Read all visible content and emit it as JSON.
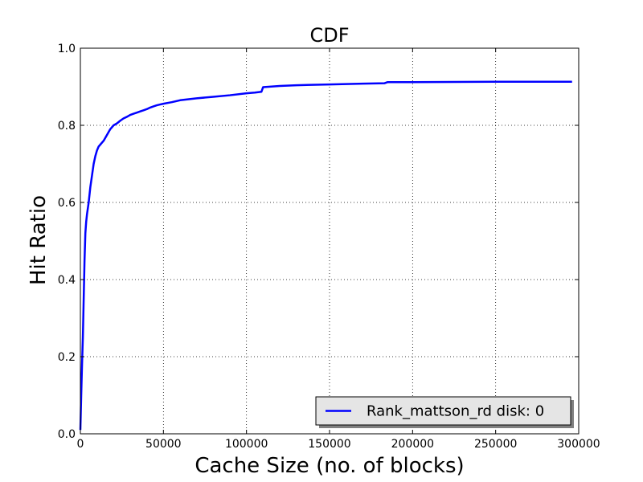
{
  "chart_data": {
    "type": "line",
    "title": "CDF",
    "xlabel": "Cache Size (no. of blocks)",
    "ylabel": "Hit Ratio",
    "xlim": [
      0,
      300000
    ],
    "ylim": [
      0,
      1.0
    ],
    "xticks": [
      0,
      50000,
      100000,
      150000,
      200000,
      250000,
      300000
    ],
    "xtick_labels": [
      "0",
      "50000",
      "100000",
      "150000",
      "200000",
      "250000",
      "300000"
    ],
    "yticks": [
      0.0,
      0.2,
      0.4,
      0.6,
      0.8,
      1.0
    ],
    "ytick_labels": [
      "0.0",
      "0.2",
      "0.4",
      "0.6",
      "0.8",
      "1.0"
    ],
    "grid": true,
    "legend_position": "bottom-right",
    "series": [
      {
        "name": "Rank_mattson_rd disk: 0",
        "color": "#0000ff",
        "x": [
          0,
          500,
          1000,
          1500,
          2000,
          2500,
          3000,
          3500,
          4000,
          5000,
          6000,
          7000,
          8000,
          9000,
          10000,
          11000,
          12000,
          13000,
          14000,
          16000,
          18000,
          20000,
          22000,
          24000,
          26000,
          28000,
          30000,
          32000,
          34000,
          36000,
          38000,
          40000,
          42000,
          44000,
          46000,
          48000,
          50000,
          55000,
          60000,
          70000,
          80000,
          90000,
          100000,
          105000,
          109000,
          110000,
          120000,
          130000,
          150000,
          170000,
          183000,
          185000,
          200000,
          250000,
          280000,
          296000
        ],
        "y": [
          0.01,
          0.1,
          0.18,
          0.25,
          0.35,
          0.45,
          0.52,
          0.55,
          0.57,
          0.6,
          0.64,
          0.67,
          0.7,
          0.72,
          0.735,
          0.745,
          0.75,
          0.755,
          0.76,
          0.775,
          0.79,
          0.8,
          0.805,
          0.812,
          0.818,
          0.822,
          0.827,
          0.83,
          0.833,
          0.836,
          0.839,
          0.842,
          0.846,
          0.849,
          0.852,
          0.854,
          0.856,
          0.86,
          0.865,
          0.87,
          0.874,
          0.878,
          0.883,
          0.885,
          0.887,
          0.899,
          0.902,
          0.904,
          0.906,
          0.908,
          0.909,
          0.912,
          0.912,
          0.913,
          0.913,
          0.913
        ]
      }
    ]
  }
}
